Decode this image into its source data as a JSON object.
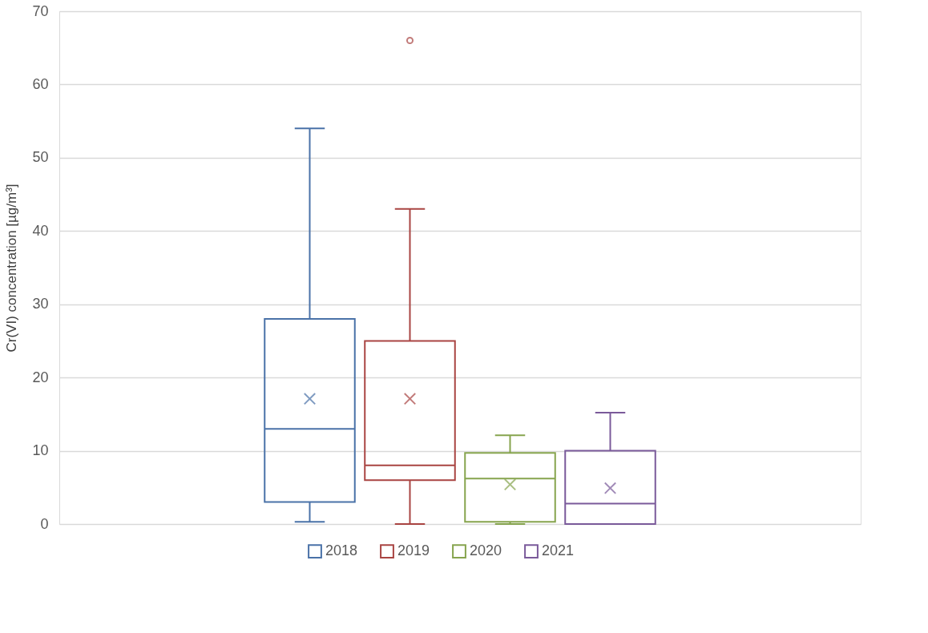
{
  "chart_data": {
    "type": "box",
    "ylabel": "Cr(VI) concentration [µg/m³]",
    "categories": [
      null
    ],
    "ylim": [
      0,
      70
    ],
    "yticks": [
      0,
      10,
      20,
      30,
      40,
      50,
      60,
      70
    ],
    "grid": "y",
    "legend": "bottom",
    "series": [
      {
        "name": "2018",
        "color": "#4a72a8",
        "boxes": [
          {
            "low": 0.3,
            "q1": 3,
            "median": 13,
            "q3": 28,
            "high": 54,
            "mean": 17.1
          }
        ]
      },
      {
        "name": "2019",
        "color": "#a94442",
        "boxes": [
          {
            "low": 0,
            "q1": 6,
            "median": 8,
            "q3": 25,
            "high": 43,
            "mean": 17.1,
            "outliers": [
              66
            ]
          }
        ]
      },
      {
        "name": "2020",
        "color": "#86a44e",
        "boxes": [
          {
            "low": 0,
            "q1": 0.3,
            "median": 6.2,
            "q3": 9.7,
            "high": 12.1,
            "mean": 5.4
          }
        ]
      },
      {
        "name": "2021",
        "color": "#7a5a9a",
        "boxes": [
          {
            "low": 0,
            "q1": 0,
            "median": 2.8,
            "q3": 10,
            "high": 15.2,
            "mean": 4.9
          }
        ]
      }
    ]
  }
}
